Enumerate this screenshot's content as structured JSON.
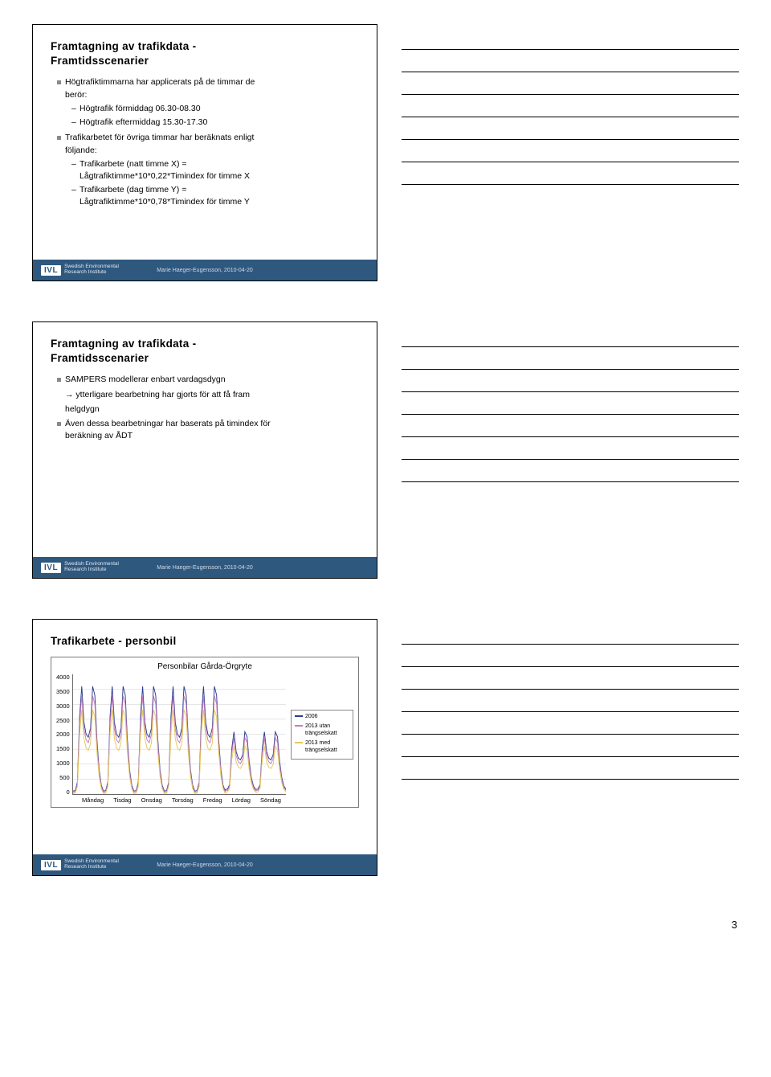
{
  "slides": [
    {
      "title_l1": "Framtagning av trafikdata -",
      "title_l2": "Framtidsscenarier",
      "bullet1_l1": "Högtrafiktimmarna har applicerats på de timmar de",
      "bullet1_l2": "berör:",
      "sub1a": "Högtrafik förmiddag 06.30-08.30",
      "sub1b": "Högtrafik eftermiddag 15.30-17.30",
      "bullet2_l1": "Trafikarbetet för övriga timmar har beräknats enligt",
      "bullet2_l2": "följande:",
      "sub2a_l1": "Trafikarbete (natt timme X) =",
      "sub2a_l2": "Lågtrafiktimme*10*0,22*Timindex för timme X",
      "sub2b_l1": "Trafikarbete (dag timme Y) =",
      "sub2b_l2": "Lågtrafiktimme*10*0,78*Timindex för timme Y"
    },
    {
      "title_l1": "Framtagning av trafikdata -",
      "title_l2": "Framtidsscenarier",
      "bullet1": "SAMPERS modellerar enbart vardagsdygn",
      "arrow_l1": "→ ytterligare bearbetning har gjorts för att få fram",
      "arrow_l2": "helgdygn",
      "bullet2_l1": "Även dessa bearbetningar har baserats på timindex för",
      "bullet2_l2": "beräkning av ÅDT"
    },
    {
      "title": "Trafikarbete - personbil",
      "chart": {
        "chart_title": "Personbilar Gårda-Örgryte",
        "ylim": [
          0,
          4000
        ],
        "yticks": [
          "4000",
          "3500",
          "3000",
          "2500",
          "2000",
          "1500",
          "1000",
          "500",
          "0"
        ],
        "xlabels": [
          "Måndag",
          "Tisdag",
          "Onsdag",
          "Torsdag",
          "Fredag",
          "Lördag",
          "Söndag"
        ],
        "series": [
          {
            "name": "2006",
            "color": "#2a3c8f"
          },
          {
            "name": "2013 utan trängselskatt",
            "color": "#c77db8"
          },
          {
            "name": "2013 med trängselskatt",
            "color": "#e6c85a"
          }
        ],
        "grid_color": "#cccccc",
        "border_color": "#7a7a7a"
      }
    }
  ],
  "footer": {
    "logo": "IVL",
    "org_l1": "Swedish Environmental",
    "org_l2": "Research Institute",
    "credit": "Marie Haeger-Eugensson, 2010-04-20",
    "bar_color": "#2f587f"
  },
  "note_lines": 7,
  "page_number": "3"
}
